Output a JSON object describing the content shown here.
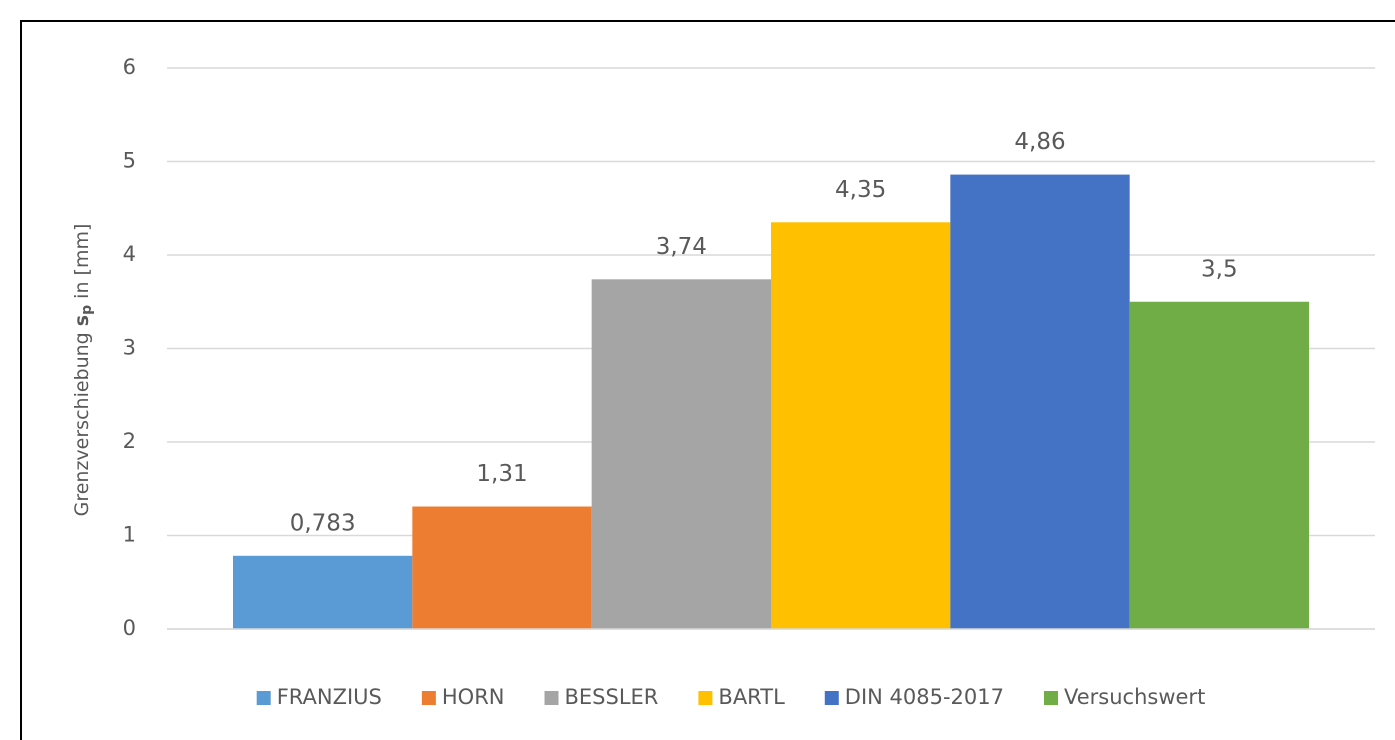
{
  "chart_data": {
    "type": "bar",
    "y_label": {
      "main": "Grenzverschiebung",
      "symbol": "s",
      "subscript": "p",
      "unit": "in [mm]"
    },
    "categories": [
      null
    ],
    "series": [
      {
        "name": "FRANZIUS",
        "color": "#5b9bd5",
        "values": [
          0.783
        ],
        "value_labels": [
          "0,783"
        ]
      },
      {
        "name": "HORN",
        "color": "#ed7d31",
        "values": [
          1.31
        ],
        "value_labels": [
          "1,31"
        ]
      },
      {
        "name": "BESSLER",
        "color": "#a5a5a5",
        "values": [
          3.74
        ],
        "value_labels": [
          "3,74"
        ]
      },
      {
        "name": "BARTL",
        "color": "#ffc000",
        "values": [
          4.35
        ],
        "value_labels": [
          "4,35"
        ]
      },
      {
        "name": "DIN 4085-2017",
        "color": "#4472c4",
        "values": [
          4.86
        ],
        "value_labels": [
          "4,86"
        ]
      },
      {
        "name": "Versuchswert",
        "color": "#70ad47",
        "values": [
          3.5
        ],
        "value_labels": [
          "3,5"
        ]
      }
    ],
    "ylim": [
      0,
      6
    ],
    "yticks": [
      0,
      1,
      2,
      3,
      4,
      5,
      6
    ],
    "grid": true,
    "legend": "bottom"
  }
}
